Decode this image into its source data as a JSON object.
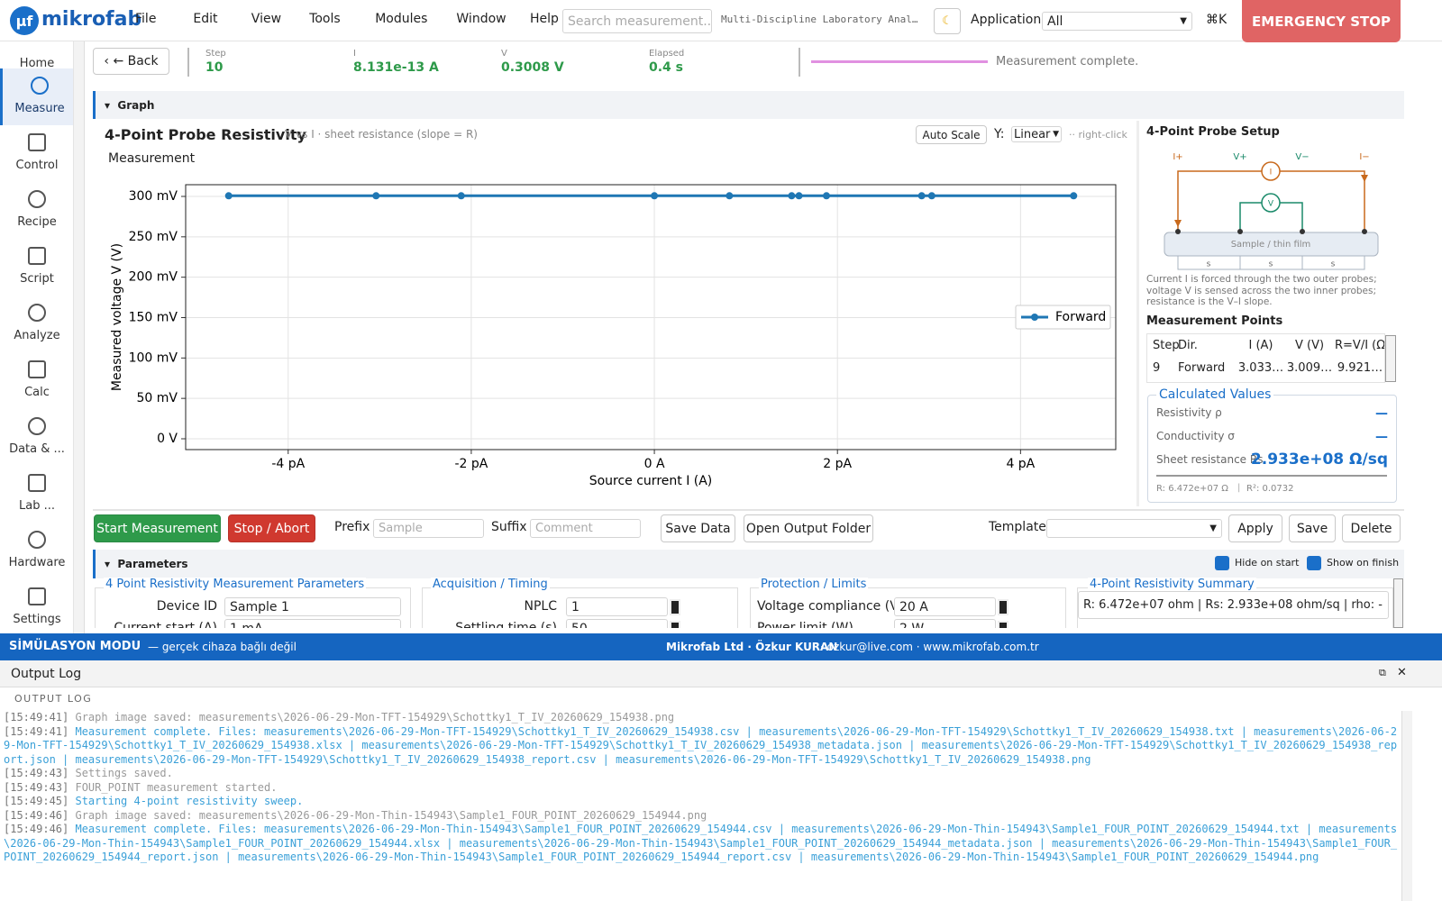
{
  "menu": {
    "brand": "mikrofab",
    "items": [
      "File",
      "Edit",
      "View",
      "Tools",
      "Modules",
      "Window",
      "Help"
    ],
    "search_placeholder": "Search measurement...",
    "app_title": "Multi-Discipline Laboratory Anal…",
    "application_label": "Application:",
    "application_value": "All",
    "shortcut": "⌘K",
    "emergency_stop": "EMERGENCY STOP"
  },
  "sidebar": [
    "Home",
    "Measure",
    "Control",
    "Recipe",
    "Script",
    "Analyze",
    "Calc",
    "Data & ...",
    "Lab ...",
    "Hardware",
    "Settings"
  ],
  "status": {
    "back": "← Back",
    "fields": [
      {
        "label": "Step",
        "value": "10"
      },
      {
        "label": "I",
        "value": "8.131e-13 A"
      },
      {
        "label": "V",
        "value": "0.3008 V"
      },
      {
        "label": "Elapsed",
        "value": "0.4 s"
      }
    ],
    "message": "Measurement complete."
  },
  "graph_section": "Graph",
  "chart_controls": {
    "auto_scale": "Auto Scale",
    "y_label": "Y:",
    "y_scale": "Linear",
    "hint": "·· right-click"
  },
  "chart_data": {
    "type": "line",
    "title": "4-Point Probe Resistivity",
    "subtitle": "V vs I · sheet resistance (slope = R)",
    "plot_label": "Measurement",
    "x_label": "Source current I (A)",
    "y_label": "Measured voltage V (V)",
    "x": [
      -4.65e-12,
      -3.04e-12,
      -2.11e-12,
      0,
      8.2e-13,
      1.5e-12,
      1.58e-12,
      1.88e-12,
      2.92e-12,
      3.03e-12,
      4.58e-12
    ],
    "series": [
      {
        "name": "Forward",
        "color": "#1f77b4",
        "values": [
          0.3008,
          0.3008,
          0.3008,
          0.3008,
          0.3008,
          0.3008,
          0.3008,
          0.3008,
          0.3008,
          0.3008,
          0.3008
        ]
      }
    ],
    "xlim": [
      -5.12e-12,
      5.04e-12
    ],
    "ylim": [
      -0.0134,
      0.3145
    ],
    "xticks": [
      {
        "value": -4e-12,
        "label": "-4 pA"
      },
      {
        "value": -2e-12,
        "label": "-2 pA"
      },
      {
        "value": 0,
        "label": "0 A"
      },
      {
        "value": 2e-12,
        "label": "2 pA"
      },
      {
        "value": 4e-12,
        "label": "4 pA"
      }
    ],
    "yticks": [
      {
        "value": 0,
        "label": "0 V"
      },
      {
        "value": 0.05,
        "label": "50 mV"
      },
      {
        "value": 0.1,
        "label": "100 mV"
      },
      {
        "value": 0.15,
        "label": "150 mV"
      },
      {
        "value": 0.2,
        "label": "200 mV"
      },
      {
        "value": 0.25,
        "label": "250 mV"
      },
      {
        "value": 0.3,
        "label": "300 mV"
      }
    ],
    "grid": true,
    "legend": "right"
  },
  "probe_setup": {
    "title": "4-Point Probe Setup",
    "terminals": [
      "I+",
      "V+",
      "V−",
      "I−"
    ],
    "meters": [
      "I",
      "V"
    ],
    "sample": "Sample / thin film",
    "spacing": [
      "s",
      "s",
      "s"
    ],
    "note": "Current I is forced through the two outer probes; voltage V is sensed across the two inner probes; resistance is the V–I slope."
  },
  "points_table": {
    "title": "Measurement Points",
    "headers": [
      "Step",
      "Dir.",
      "I (A)",
      "V (V)",
      "R=V/I (Ω)"
    ],
    "rows": [
      [
        "9",
        "Forward",
        "3.033…",
        "3.009…",
        "9.921…"
      ]
    ]
  },
  "calculated": {
    "title": "Calculated Values",
    "rows": [
      {
        "label": "Resistivity ρ",
        "value": "—"
      },
      {
        "label": "Conductivity σ",
        "value": "—"
      },
      {
        "label": "Sheet resistance Rs",
        "value": "2.933e+08 Ω/sq"
      }
    ],
    "r": "R: 6.472e+07 Ω",
    "r2": "R²: 0.0732"
  },
  "actions": {
    "start": "Start Measurement",
    "stop": "Stop / Abort",
    "prefix_label": "Prefix",
    "prefix_placeholder": "Sample",
    "suffix_label": "Suffix",
    "suffix_placeholder": "Comment",
    "save_data": "Save Data",
    "open_folder": "Open Output Folder",
    "template_label": "Template:",
    "apply": "Apply",
    "save": "Save",
    "delete": "Delete"
  },
  "parameters": {
    "title": "Parameters",
    "hide_on_start": "Hide on start",
    "show_on_finish": "Show on finish",
    "groups": [
      {
        "title": "4 Point Resistivity Measurement Parameters",
        "fields": [
          {
            "label": "Device ID",
            "value": "Sample 1"
          },
          {
            "label": "Current start (A)",
            "value": "1 mA"
          }
        ]
      },
      {
        "title": "Acquisition / Timing",
        "fields": [
          {
            "label": "NPLC",
            "value": "1"
          },
          {
            "label": "Settling time (s)",
            "value": "50"
          }
        ]
      },
      {
        "title": "Protection / Limits",
        "fields": [
          {
            "label": "Voltage compliance (V)",
            "value": "20 A"
          },
          {
            "label": "Power limit (W)",
            "value": "2 W"
          }
        ]
      }
    ],
    "summary_title": "4-Point Resistivity Summary",
    "summary": "R: 6.472e+07 ohm | Rs: 2.933e+08 ohm/sq | rho: -"
  },
  "footer": {
    "mode": "SİMÜLASYON MODU",
    "mode_note": "— gerçek cihaza bağlı değil",
    "company": "Mikrofab Ltd · Özkur KURAN",
    "contact": "· ozkur@live.com · www.mikrofab.com.tr"
  },
  "output_log": {
    "title": "Output Log",
    "heading": "OUTPUT LOG",
    "lines": [
      {
        "time": "[15:49:41]",
        "text": "Graph image saved: measurements\\2026-06-29-Mon-TFT-154929\\Schottky1_T_IV_20260629_154938.png",
        "color": "#9a9a9a"
      },
      {
        "time": "[15:49:41]",
        "text": "Measurement complete. Files: measurements\\2026-06-29-Mon-TFT-154929\\Schottky1_T_IV_20260629_154938.csv | measurements\\2026-06-29-Mon-TFT-154929\\Schottky1_T_IV_20260629_154938.txt | measurements\\2026-06-29-Mon-TFT-154929\\Schottky1_T_IV_20260629_154938.xlsx | measurements\\2026-06-29-Mon-TFT-154929\\Schottky1_T_IV_20260629_154938_metadata.json | measurements\\2026-06-29-Mon-TFT-154929\\Schottky1_T_IV_20260629_154938_report.json | measurements\\2026-06-29-Mon-TFT-154929\\Schottky1_T_IV_20260629_154938_report.csv | measurements\\2026-06-29-Mon-TFT-154929\\Schottky1_T_IV_20260629_154938.png",
        "color": "#3aa0d8"
      },
      {
        "time": "[15:49:43]",
        "text": "Settings saved.",
        "color": "#9a9a9a"
      },
      {
        "time": "[15:49:43]",
        "text": "FOUR_POINT measurement started.",
        "color": "#9a9a9a"
      },
      {
        "time": "[15:49:45]",
        "text": "Starting 4-point resistivity sweep.",
        "color": "#3aa0d8"
      },
      {
        "time": "[15:49:46]",
        "text": "Graph image saved: measurements\\2026-06-29-Mon-Thin-154943\\Sample1_FOUR_POINT_20260629_154944.png",
        "color": "#9a9a9a"
      },
      {
        "time": "[15:49:46]",
        "text": "Measurement complete. Files: measurements\\2026-06-29-Mon-Thin-154943\\Sample1_FOUR_POINT_20260629_154944.csv | measurements\\2026-06-29-Mon-Thin-154943\\Sample1_FOUR_POINT_20260629_154944.txt | measurements\\2026-06-29-Mon-Thin-154943\\Sample1_FOUR_POINT_20260629_154944.xlsx | measurements\\2026-06-29-Mon-Thin-154943\\Sample1_FOUR_POINT_20260629_154944_metadata.json | measurements\\2026-06-29-Mon-Thin-154943\\Sample1_FOUR_POINT_20260629_154944_report.json | measurements\\2026-06-29-Mon-Thin-154943\\Sample1_FOUR_POINT_20260629_154944_report.csv | measurements\\2026-06-29-Mon-Thin-154943\\Sample1_FOUR_POINT_20260629_154944.png",
        "color": "#3aa0d8"
      }
    ]
  }
}
